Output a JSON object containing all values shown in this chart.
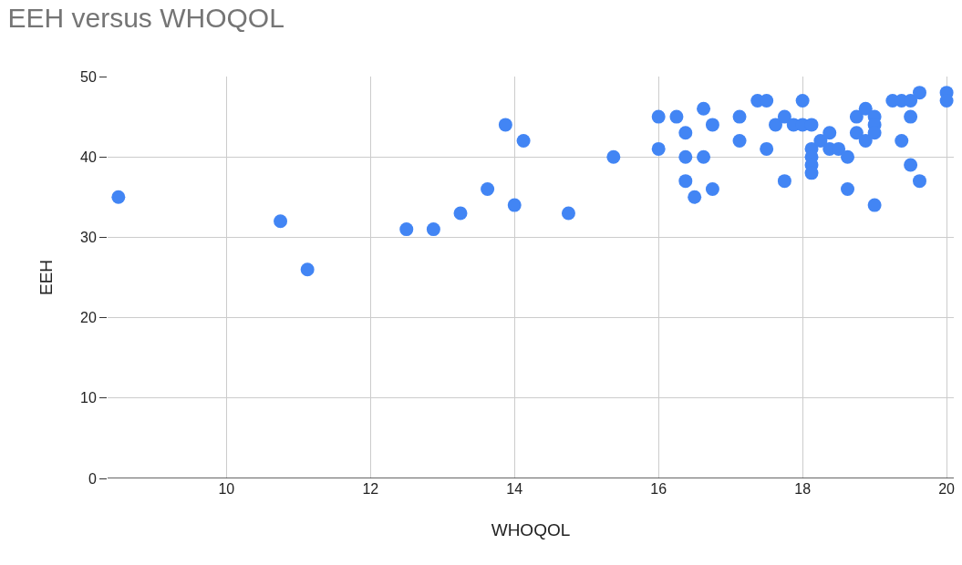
{
  "chart_data": {
    "type": "scatter",
    "title": "EEH versus WHOQOL",
    "xlabel": "WHOQOL",
    "ylabel": "EEH",
    "x": [
      8.5,
      10.75,
      11.125,
      12.5,
      12.875,
      13.25,
      13.625,
      13.875,
      14,
      14.125,
      14.75,
      15.375,
      16,
      16,
      16.25,
      16.375,
      16.375,
      16.375,
      16.5,
      16.625,
      16.625,
      16.75,
      16.75,
      17.125,
      17.125,
      17.375,
      17.5,
      17.5,
      17.625,
      17.75,
      17.75,
      17.875,
      18,
      18,
      18.125,
      18.125,
      18.125,
      18.125,
      18.125,
      18.25,
      18.375,
      18.375,
      18.5,
      18.625,
      18.625,
      18.75,
      18.75,
      18.875,
      18.875,
      19,
      19,
      19,
      19,
      19.25,
      19.375,
      19.375,
      19.5,
      19.5,
      19.5,
      19.625,
      19.625,
      20,
      20
    ],
    "values": [
      35,
      32,
      26,
      31,
      31,
      33,
      36,
      44,
      34,
      42,
      33,
      40,
      45,
      41,
      45,
      43,
      40,
      37,
      35,
      46,
      40,
      44,
      36,
      45,
      42,
      47,
      47,
      41,
      44,
      45,
      37,
      44,
      47,
      44,
      44,
      41,
      40,
      39,
      38,
      42,
      43,
      41,
      41,
      40,
      36,
      45,
      43,
      46,
      42,
      45,
      44,
      43,
      34,
      47,
      47,
      42,
      47,
      45,
      39,
      48,
      37,
      48,
      47
    ],
    "color": "#4285f4",
    "marker": "circle",
    "xlim": [
      8.35,
      20.1
    ],
    "xticks": [
      10,
      12,
      14,
      16,
      18,
      20
    ],
    "ylim": [
      0,
      50
    ],
    "yticks": [
      0,
      10,
      20,
      30,
      40,
      50
    ],
    "grid": true,
    "legend": false
  }
}
